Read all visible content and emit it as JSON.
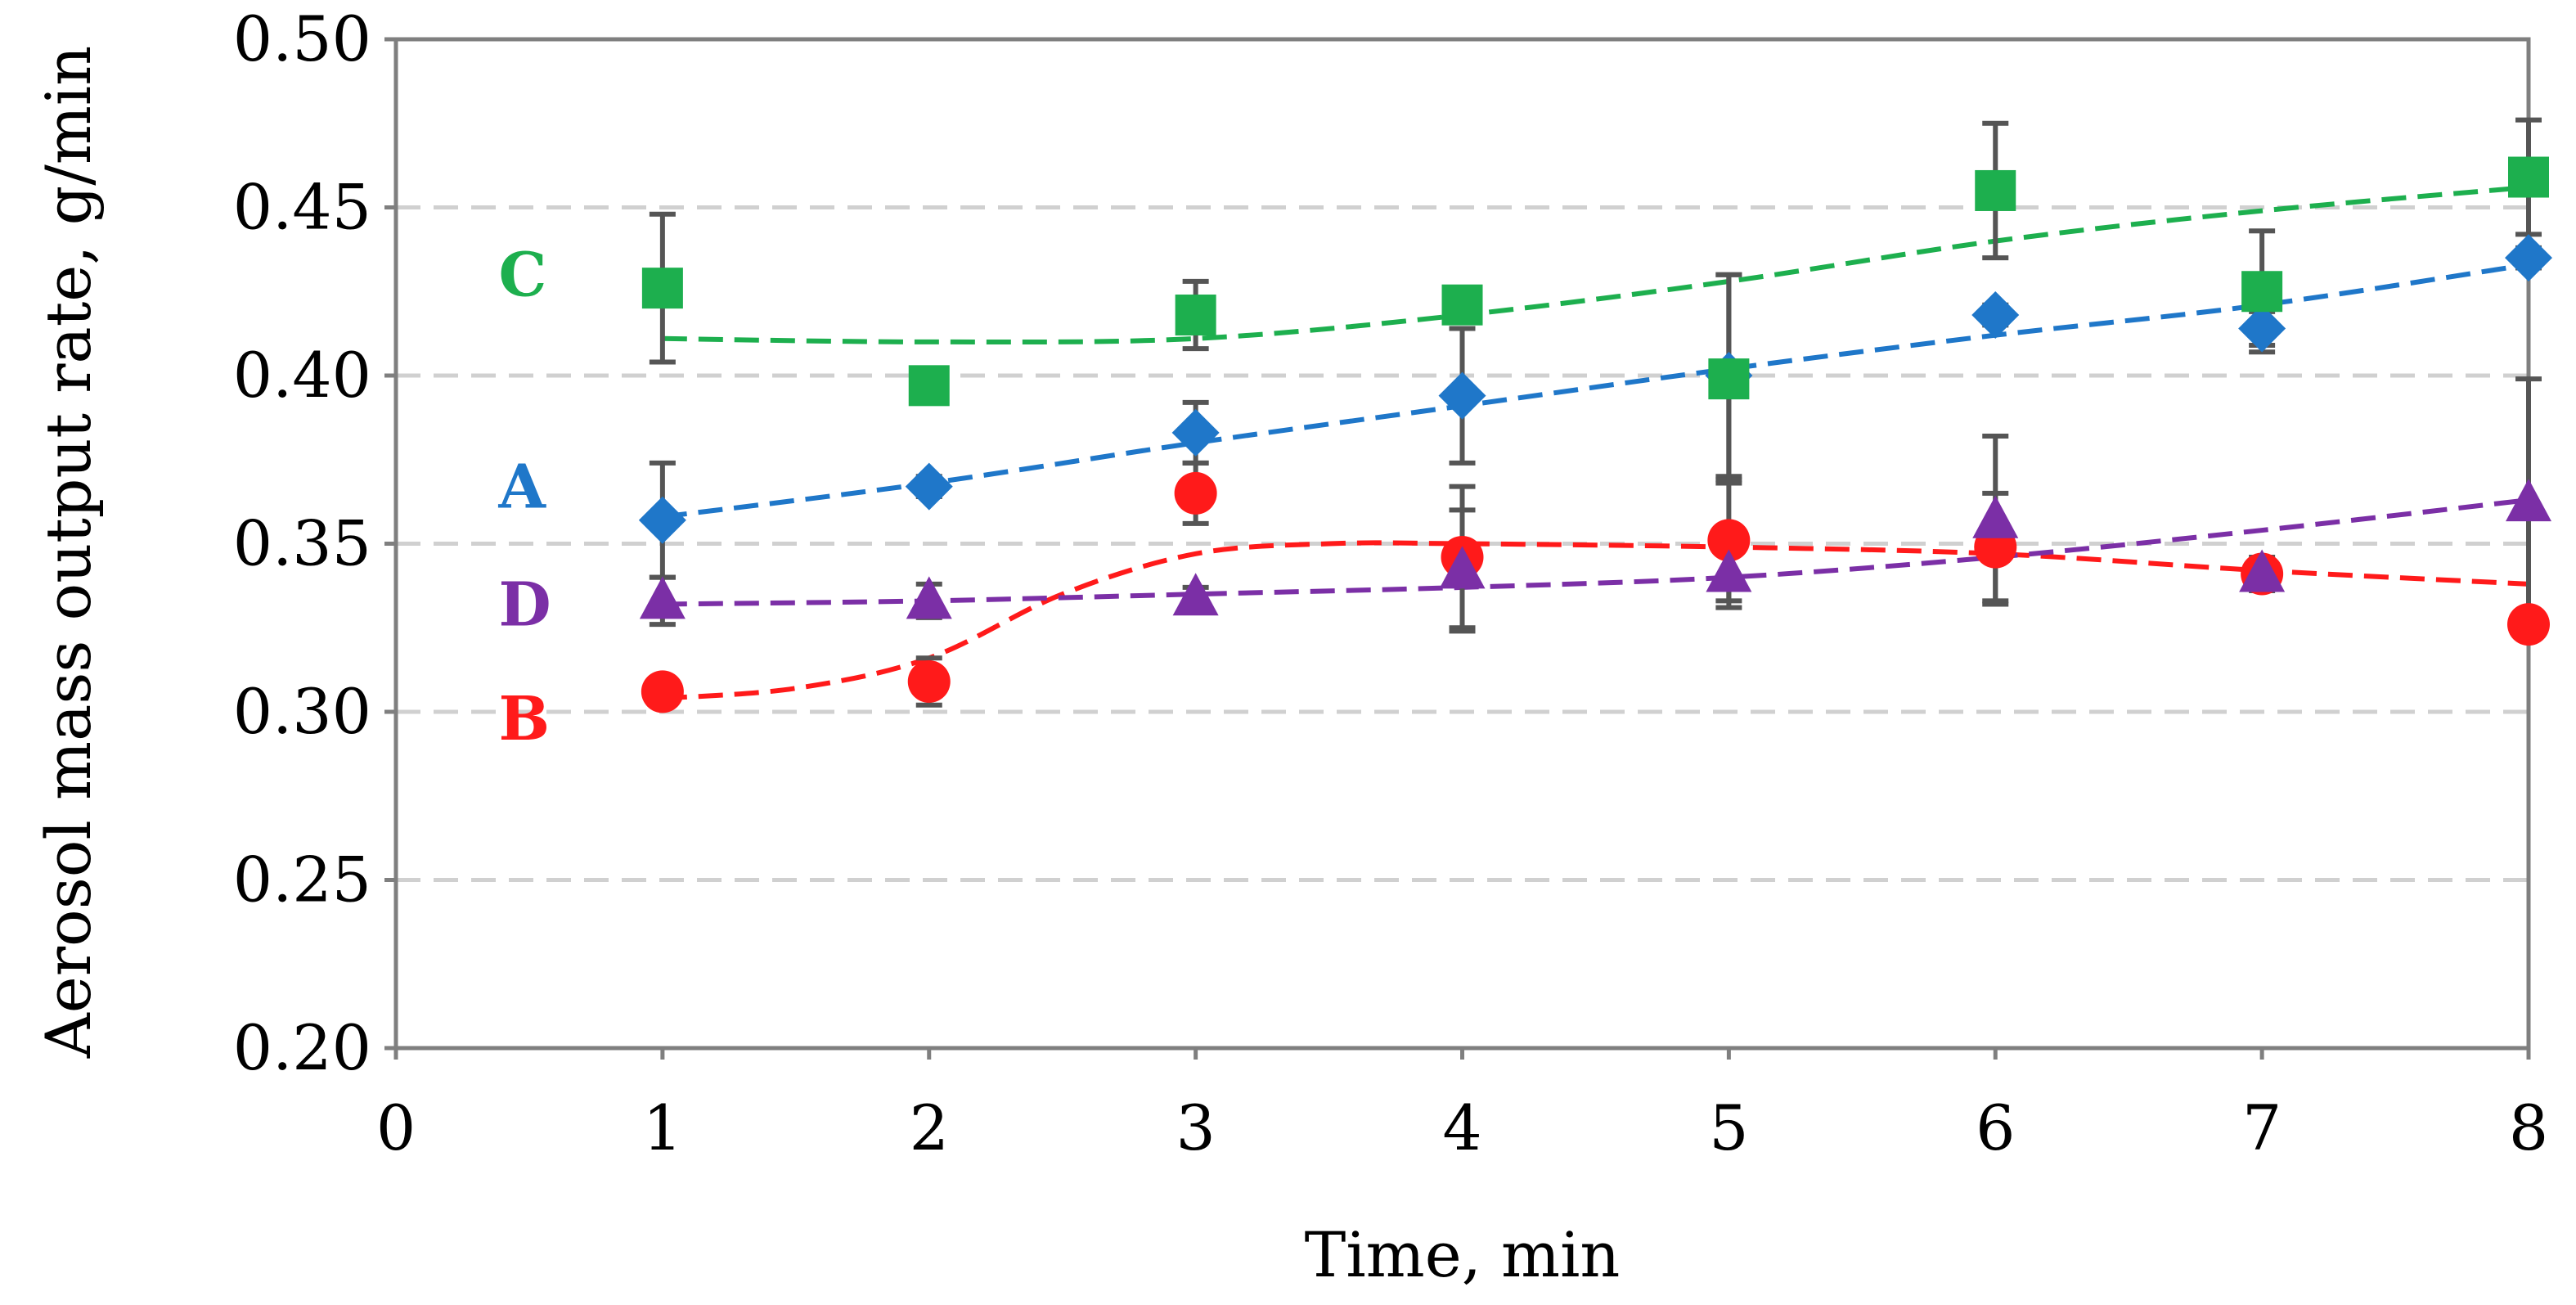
{
  "chart_data": {
    "type": "scatter",
    "title": "",
    "xlabel": "Time, min",
    "ylabel": "Aerosol mass output rate, g/min",
    "xlim": [
      0,
      8
    ],
    "ylim": [
      0.2,
      0.5
    ],
    "xticks": [
      0,
      1,
      2,
      3,
      4,
      5,
      6,
      7,
      8
    ],
    "xtick_labels": [
      "0",
      "1",
      "2",
      "3",
      "4",
      "5",
      "6",
      "7",
      "8"
    ],
    "yticks": [
      0.2,
      0.25,
      0.3,
      0.35,
      0.4,
      0.45,
      0.5
    ],
    "ytick_labels": [
      "0.20",
      "0.25",
      "0.30",
      "0.35",
      "0.40",
      "0.45",
      "0.50"
    ],
    "grid": "horizontal dashed",
    "series": [
      {
        "name": "A",
        "color": "#1F77C9",
        "marker": "diamond",
        "x": [
          1,
          2,
          3,
          4,
          5,
          6,
          7,
          8
        ],
        "values": [
          0.357,
          0.367,
          0.383,
          0.394,
          0.4,
          0.418,
          0.414,
          0.435
        ],
        "err": [
          0.017,
          0.003,
          0.009,
          0.02,
          0.03,
          0.003,
          0.005,
          0.003
        ],
        "trend": [
          [
            1,
            0.358
          ],
          [
            2,
            0.368
          ],
          [
            3,
            0.38
          ],
          [
            4,
            0.391
          ],
          [
            5,
            0.402
          ],
          [
            6,
            0.412
          ],
          [
            7,
            0.421
          ],
          [
            8,
            0.433
          ]
        ],
        "label_pos": [
          0.6,
          0.367
        ]
      },
      {
        "name": "B",
        "color": "#FF1A1A",
        "marker": "circle",
        "x": [
          1,
          2,
          3,
          4,
          5,
          6,
          7,
          8
        ],
        "values": [
          0.306,
          0.309,
          0.365,
          0.346,
          0.351,
          0.349,
          0.341,
          0.326
        ],
        "err": [
          0.003,
          0.007,
          0.009,
          0.021,
          0.018,
          0.016,
          0.004,
          0.003
        ],
        "trend": [
          [
            1,
            0.304
          ],
          [
            1.5,
            0.307
          ],
          [
            2,
            0.316
          ],
          [
            2.5,
            0.335
          ],
          [
            3,
            0.347
          ],
          [
            3.5,
            0.35
          ],
          [
            4,
            0.35
          ],
          [
            5,
            0.349
          ],
          [
            6,
            0.347
          ],
          [
            7,
            0.342
          ],
          [
            8,
            0.338
          ]
        ],
        "label_pos": [
          0.6,
          0.298
        ]
      },
      {
        "name": "C",
        "color": "#1DAF4E",
        "marker": "square",
        "x": [
          1,
          2,
          3,
          4,
          5,
          6,
          7,
          8
        ],
        "values": [
          0.426,
          0.397,
          0.418,
          0.421,
          0.399,
          0.455,
          0.425,
          0.459
        ],
        "err": [
          0.022,
          0.003,
          0.01,
          0.003,
          0.031,
          0.02,
          0.018,
          0.017
        ],
        "trend": [
          [
            1,
            0.411
          ],
          [
            2,
            0.41
          ],
          [
            3,
            0.411
          ],
          [
            4,
            0.418
          ],
          [
            5,
            0.428
          ],
          [
            6,
            0.44
          ],
          [
            7,
            0.449
          ],
          [
            8,
            0.456
          ]
        ],
        "label_pos": [
          0.6,
          0.43
        ]
      },
      {
        "name": "D",
        "color": "#7B2FA6",
        "marker": "triangle",
        "x": [
          1,
          2,
          3,
          4,
          5,
          6,
          7,
          8
        ],
        "values": [
          0.333,
          0.333,
          0.334,
          0.342,
          0.341,
          0.357,
          0.341,
          0.362
        ],
        "err": [
          0.007,
          0.005,
          0.003,
          0.018,
          0.01,
          0.025,
          0.005,
          0.037
        ],
        "trend": [
          [
            1,
            0.332
          ],
          [
            2,
            0.333
          ],
          [
            3,
            0.335
          ],
          [
            4,
            0.337
          ],
          [
            5,
            0.34
          ],
          [
            6,
            0.346
          ],
          [
            7,
            0.354
          ],
          [
            8,
            0.363
          ]
        ],
        "label_pos": [
          0.6,
          0.332
        ]
      }
    ]
  }
}
